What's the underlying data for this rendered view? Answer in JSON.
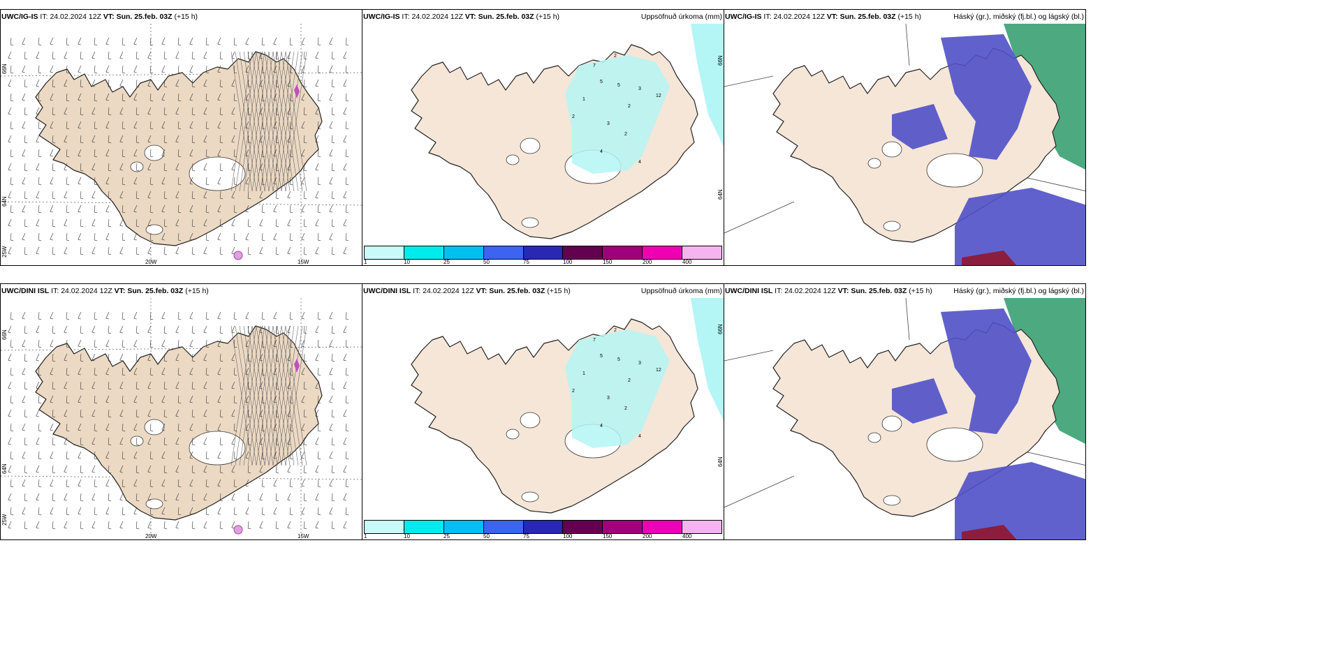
{
  "panels": [
    {
      "model": "UWC/IG-IS",
      "it_label": "IT:",
      "it": "24.02.2024 12Z",
      "vt_label": "VT:",
      "vt": "Sun. 25.feb. 03Z",
      "lead": "(+15 h)",
      "right_title": "",
      "type": "wind"
    },
    {
      "model": "UWC/IG-IS",
      "it_label": "IT:",
      "it": "24.02.2024 12Z",
      "vt_label": "VT:",
      "vt": "Sun. 25.feb. 03Z",
      "lead": "(+15 h)",
      "right_title": "Uppsöfnuð úrkoma (mm)",
      "type": "precip"
    },
    {
      "model": "UWC/IG-IS",
      "it_label": "IT:",
      "it": "24.02.2024 12Z",
      "vt_label": "VT:",
      "vt": "Sun. 25.feb. 03Z",
      "lead": "(+15 h)",
      "right_title": "Háský (gr.), miðský (fj.bl.) og lágský (bl.)",
      "type": "cloud"
    },
    {
      "model": "UWC/DINI ISL",
      "it_label": "IT:",
      "it": "24.02.2024 12Z",
      "vt_label": "VT:",
      "vt": "Sun. 25.feb. 03Z",
      "lead": "(+15 h)",
      "right_title": "",
      "type": "wind"
    },
    {
      "model": "UWC/DINI ISL",
      "it_label": "IT:",
      "it": "24.02.2024 12Z",
      "vt_label": "VT:",
      "vt": "Sun. 25.feb. 03Z",
      "lead": "(+15 h)",
      "right_title": "Uppsöfnuð úrkoma (mm)",
      "type": "precip"
    },
    {
      "model": "UWC/DINI ISL",
      "it_label": "IT:",
      "it": "24.02.2024 12Z",
      "vt_label": "VT:",
      "vt": "Sun. 25.feb. 03Z",
      "lead": "(+15 h)",
      "right_title": "Háský (gr.), miðský (fj.bl.) og lágský (bl.)",
      "type": "cloud"
    }
  ],
  "axis_labels": {
    "lat_66": "66N",
    "lat_64": "64N",
    "lon_25": "25W",
    "lon_20": "20W",
    "lon_15": "15W"
  },
  "colorbar": {
    "labels": [
      "1",
      "10",
      "25",
      "50",
      "75",
      "100",
      "150",
      "200",
      "400"
    ],
    "colors": [
      "#c8fafa",
      "#00ecec",
      "#00c0f0",
      "#3c64f0",
      "#2828b4",
      "#640050",
      "#a0007c",
      "#f000b4",
      "#f5b4f0"
    ]
  },
  "colors": {
    "land": "#f5e6d8",
    "land_wind": "#ecd9c3",
    "precip": "#b4f5f5",
    "cloud_high": "#2e9a6a",
    "cloud_mid": "#5050c8",
    "cloud_low": "#6a8cf0"
  }
}
